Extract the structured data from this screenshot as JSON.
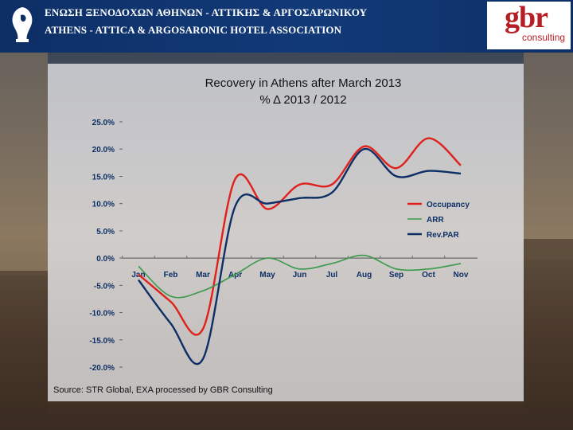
{
  "header": {
    "greek_name": "ΕΝΩΣΗ ΞΕΝΟΔΟΧΩΝ ΑΘΗΝΩΝ - ΑΤΤΙΚΗΣ & ΑΡΓΟΣΑΡΩΝΙΚΟΥ",
    "english_name": "ATHENS - ATTICA & ARGOSARONIC HOTEL ASSOCIATION",
    "consultant_logo": "gbr",
    "consultant_sub": "consulting"
  },
  "colors": {
    "header_bg": "#123a78",
    "occupancy": "#e0201b",
    "arr": "#3a9a4a",
    "revpar": "#0d2f66"
  },
  "source_note": "Source: STR Global, EXA processed by GBR Consulting",
  "chart_data": {
    "type": "line",
    "title": "Recovery in Athens after March 2013",
    "subtitle": "% Δ 2013 / 2012",
    "xlabel": "",
    "ylabel": "",
    "categories": [
      "Jan",
      "Feb",
      "Mar",
      "Apr",
      "May",
      "Jun",
      "Jul",
      "Aug",
      "Sep",
      "Oct",
      "Nov"
    ],
    "ylim": [
      -20,
      25
    ],
    "yticks": [
      25,
      20,
      15,
      10,
      5,
      0,
      -5,
      -10,
      -15,
      -20
    ],
    "ytick_labels": [
      "25.0%",
      "20.0%",
      "15.0%",
      "10.0%",
      "5.0%",
      "0.0%",
      "-5.0%",
      "-10.0%",
      "-15.0%",
      "-20.0%"
    ],
    "grid": false,
    "legend": "right",
    "series": [
      {
        "name": "Occupancy",
        "color": "#e0201b",
        "values": [
          -3,
          -8,
          -13,
          14.5,
          9,
          13.5,
          13.5,
          20.5,
          16.5,
          22,
          17
        ]
      },
      {
        "name": "ARR",
        "color": "#3a9a4a",
        "values": [
          -1.5,
          -7,
          -6,
          -3,
          0,
          -2,
          -1,
          0.5,
          -2,
          -2,
          -1
        ]
      },
      {
        "name": "Rev.PAR",
        "color": "#0d2f66",
        "values": [
          -4,
          -12,
          -18.5,
          9.5,
          10,
          11,
          12,
          20,
          15,
          16,
          15.5
        ]
      }
    ]
  }
}
